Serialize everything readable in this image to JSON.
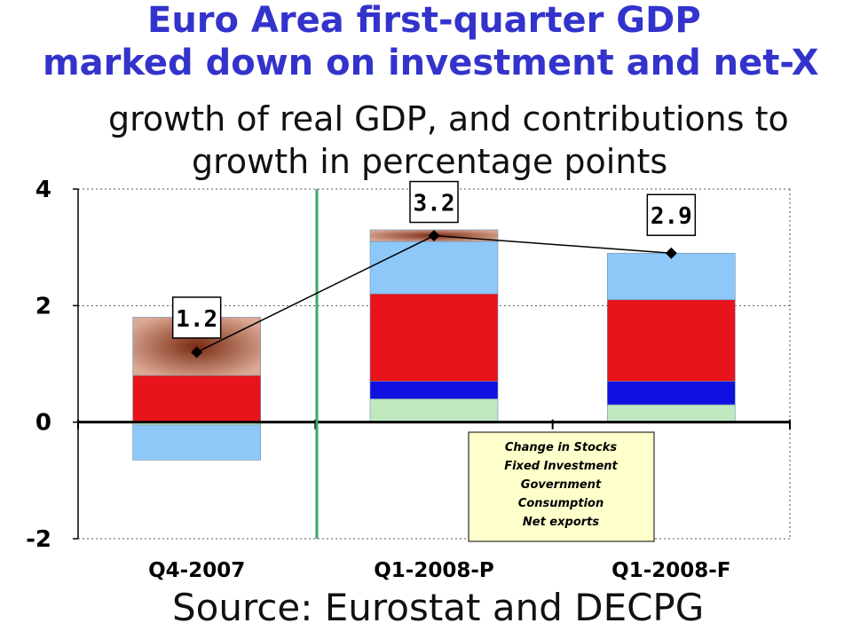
{
  "title_line1": "Euro Area first-quarter GDP",
  "title_line2": "marked down on investment and net-X",
  "subtitle_line1": "growth of real GDP, and contributions to",
  "subtitle_line2": "growth in percentage points",
  "source": "Source: Eurostat and DECPG",
  "colors": {
    "title": "#3333cc",
    "change_in_stocks": "#c98a73",
    "fixed_investment": "#8ec8f8",
    "government": "#e8141b",
    "consumption": "#1010e0",
    "net_exports": "#bfe8bf",
    "divider": "#3aa86b",
    "legend_bg": "#ffffcc"
  },
  "chart_data": {
    "type": "bar",
    "stacked": true,
    "categories": [
      "Q4-2007",
      "Q1-2008-P",
      "Q1-2008-F"
    ],
    "ylim": [
      -2,
      4
    ],
    "yticks": [
      -2,
      0,
      2,
      4
    ],
    "grid": true,
    "legend_placement": "bottom-center",
    "legend": [
      "Change in Stocks",
      "Fixed Investment",
      "Government",
      "Consumption",
      "Net exports"
    ],
    "series": [
      {
        "name": "Net exports",
        "values": [
          -0.05,
          0.4,
          0.3
        ]
      },
      {
        "name": "Consumption",
        "values": [
          0.0,
          0.3,
          0.4
        ]
      },
      {
        "name": "Government",
        "values": [
          0.8,
          1.5,
          1.4
        ]
      },
      {
        "name": "Fixed Investment",
        "values": [
          -0.6,
          0.9,
          0.8
        ]
      },
      {
        "name": "Change in Stocks",
        "values": [
          1.0,
          0.2,
          0.0
        ]
      }
    ],
    "gdp_line": {
      "values": [
        1.2,
        3.2,
        2.9
      ],
      "labels": [
        "1.2",
        "3.2",
        "2.9"
      ]
    }
  }
}
